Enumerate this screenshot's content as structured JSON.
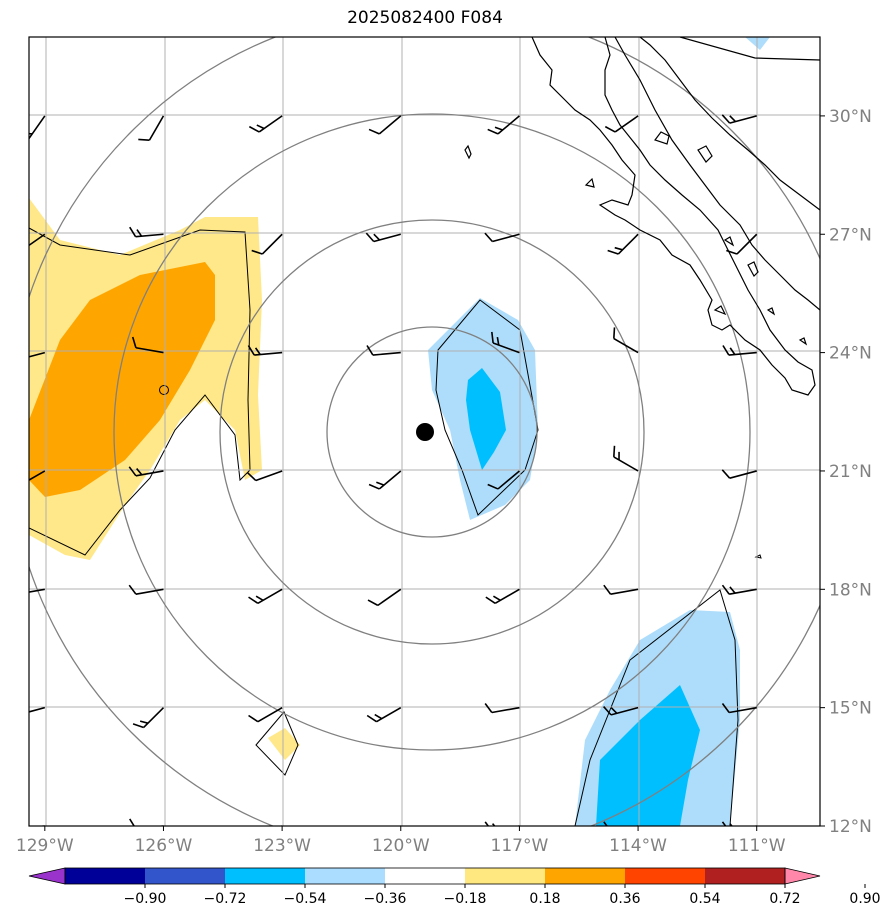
{
  "title": "2025082400 F084",
  "map": {
    "projection": "lat-lon",
    "lon_range": [
      -129.4,
      -109.4
    ],
    "lat_range": [
      12.0,
      32.0
    ],
    "lon_ticks": [
      {
        "value": -129,
        "label": "129°W"
      },
      {
        "value": -126,
        "label": "126°W"
      },
      {
        "value": -123,
        "label": "123°W"
      },
      {
        "value": -120,
        "label": "120°W"
      },
      {
        "value": -117,
        "label": "117°W"
      },
      {
        "value": -114,
        "label": "114°W"
      },
      {
        "value": -111,
        "label": "111°W"
      }
    ],
    "lat_ticks": [
      {
        "value": 12,
        "label": "12°N"
      },
      {
        "value": 15,
        "label": "15°N"
      },
      {
        "value": 18,
        "label": "18°N"
      },
      {
        "value": 21,
        "label": "21°N"
      },
      {
        "value": 24,
        "label": "24°N"
      },
      {
        "value": 27,
        "label": "27°N"
      },
      {
        "value": 30,
        "label": "30°N"
      }
    ],
    "center_marker": {
      "lon": -119.4,
      "lat": 22.0
    },
    "range_ring_radii_deg": [
      3.2,
      5.4,
      8.0,
      10.8
    ],
    "gridline_color": "#b0b0b0",
    "ring_color": "#808080"
  },
  "colorbar": {
    "ticks": [
      "−0.90",
      "−0.72",
      "−0.54",
      "−0.36",
      "−0.18",
      "0.18",
      "0.36",
      "0.54",
      "0.72",
      "0.90"
    ],
    "colors": [
      "#9933cc",
      "#000099",
      "#3355cc",
      "#00bfff",
      "#aaddff",
      "#ffffff",
      "#ffe880",
      "#ffa500",
      "#ff4400",
      "#b02020",
      "#ff88aa"
    ]
  },
  "wind_barbs_grid": {
    "lons": [
      -129,
      -126,
      -123,
      -120,
      -117,
      -114,
      -111
    ],
    "lats": [
      30,
      27,
      24,
      21,
      18,
      15,
      12
    ]
  }
}
